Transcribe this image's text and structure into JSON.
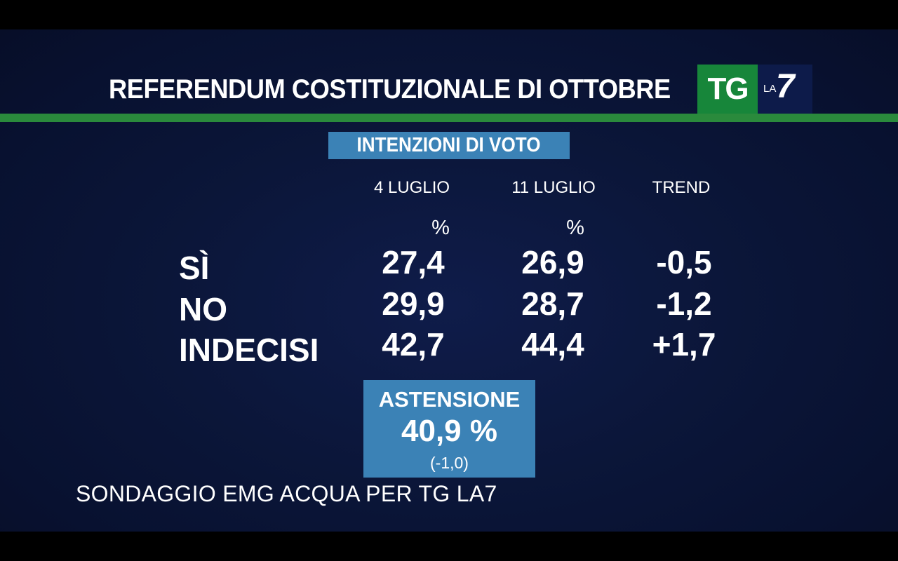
{
  "header": {
    "title": "REFERENDUM COSTITUZIONALE DI OTTOBRE",
    "logo_tg": "TG",
    "logo_la": "LA",
    "logo_seven": "7"
  },
  "subtitle": "INTENZIONI DI VOTO",
  "columns": {
    "c1": "4 LUGLIO",
    "c2": "11 LUGLIO",
    "c3": "TREND"
  },
  "units": {
    "c1": "%",
    "c2": "%"
  },
  "rows": [
    {
      "label": "SÌ",
      "c1": "27,4",
      "c2": "26,9",
      "trend": "-0,5"
    },
    {
      "label": "NO",
      "c1": "29,9",
      "c2": "28,7",
      "trend": "-1,2"
    },
    {
      "label": "INDECISI",
      "c1": "42,7",
      "c2": "44,4",
      "trend": "+1,7"
    }
  ],
  "abstention": {
    "label": "ASTENSIONE",
    "value": "40,9 %",
    "delta": "(-1,0)"
  },
  "source": "SONDAGGIO EMG ACQUA PER TG LA7",
  "colors": {
    "background": "#0b1639",
    "green_rule": "#2a8a3c",
    "box_blue": "#3b82b6",
    "logo_green": "#17863a"
  }
}
